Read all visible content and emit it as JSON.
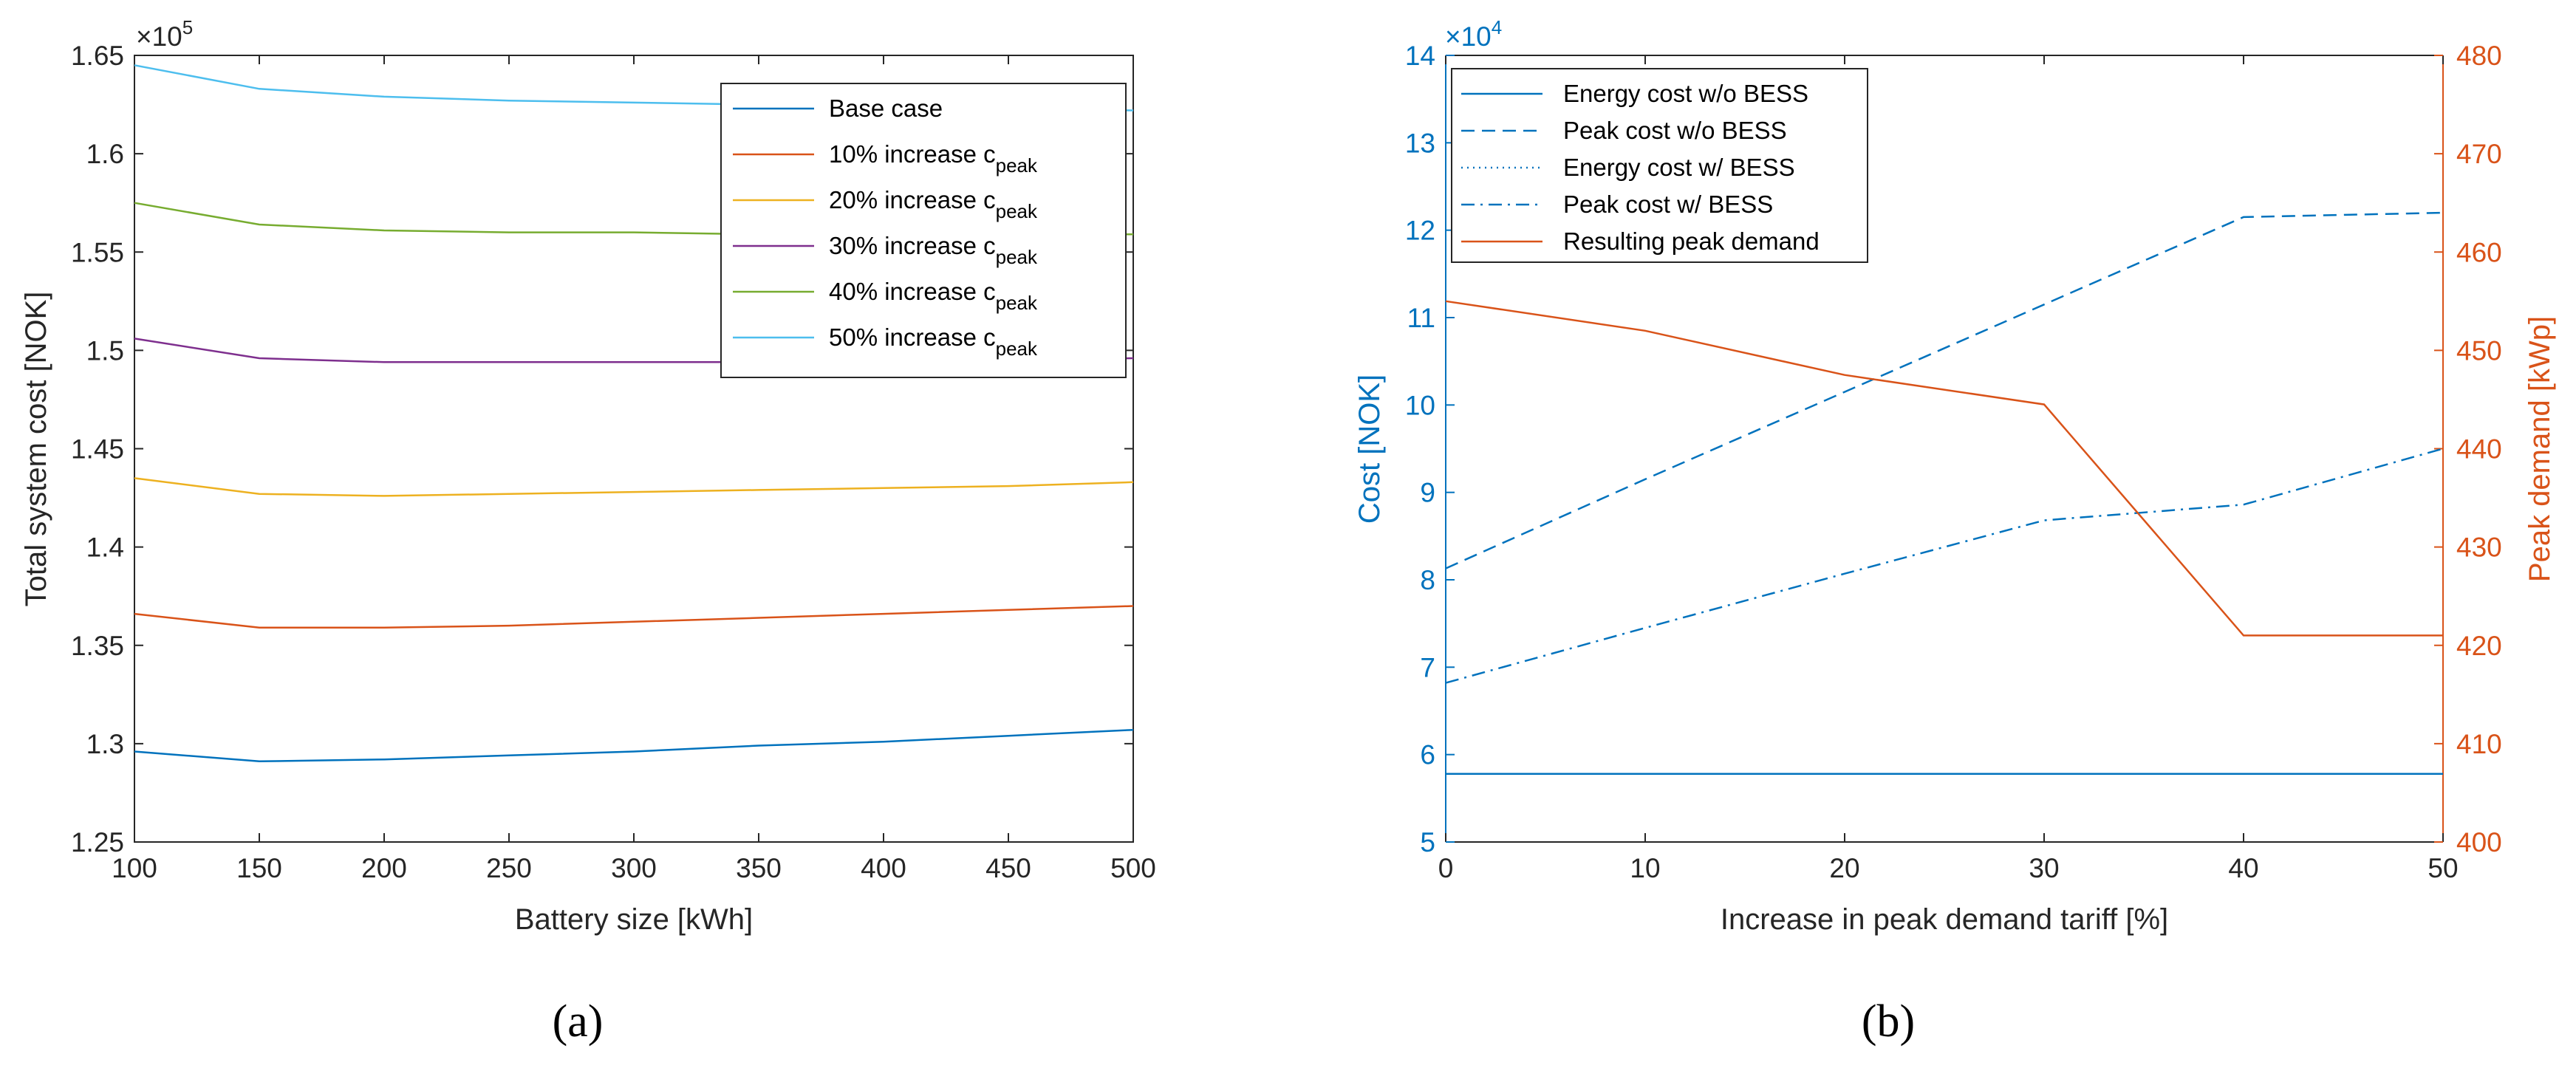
{
  "chart_data": [
    {
      "id": "a",
      "type": "line",
      "caption": "(a)",
      "xlabel": "Battery size [kWh]",
      "ylabel": "Total system cost [NOK]",
      "y_multiplier": "×10",
      "y_exponent": "5",
      "xlim": [
        100,
        500
      ],
      "ylim": [
        1.25,
        1.65
      ],
      "xticks": [
        100,
        150,
        200,
        250,
        300,
        350,
        400,
        450,
        500
      ],
      "xtick_labels": [
        "100",
        "150",
        "200",
        "250",
        "300",
        "350",
        "400",
        "450",
        "500"
      ],
      "yticks": [
        1.25,
        1.3,
        1.35,
        1.4,
        1.45,
        1.5,
        1.55,
        1.6,
        1.65
      ],
      "ytick_labels": [
        "1.25",
        "1.3",
        "1.35",
        "1.4",
        "1.45",
        "1.5",
        "1.55",
        "1.6",
        "1.65"
      ],
      "grid": false,
      "legend_position": "top-right",
      "x": [
        100,
        150,
        200,
        250,
        300,
        350,
        400,
        450,
        500
      ],
      "series": [
        {
          "name": "Base case",
          "label": "Base case",
          "sub": "",
          "color": "#0072BD",
          "values": [
            1.296,
            1.291,
            1.292,
            1.294,
            1.296,
            1.299,
            1.301,
            1.304,
            1.307
          ]
        },
        {
          "name": "10% increase c_peak",
          "label": "10% increase c",
          "sub": "peak",
          "color": "#D95319",
          "values": [
            1.366,
            1.359,
            1.359,
            1.36,
            1.362,
            1.364,
            1.366,
            1.368,
            1.37
          ]
        },
        {
          "name": "20% increase c_peak",
          "label": "20% increase c",
          "sub": "peak",
          "color": "#EDB120",
          "values": [
            1.435,
            1.427,
            1.426,
            1.427,
            1.428,
            1.429,
            1.43,
            1.431,
            1.433
          ]
        },
        {
          "name": "30% increase c_peak",
          "label": "30% increase c",
          "sub": "peak",
          "color": "#7E2F8E",
          "values": [
            1.506,
            1.496,
            1.494,
            1.494,
            1.494,
            1.494,
            1.495,
            1.495,
            1.496
          ]
        },
        {
          "name": "40% increase c_peak",
          "label": "40% increase c",
          "sub": "peak",
          "color": "#77AC30",
          "values": [
            1.575,
            1.564,
            1.561,
            1.56,
            1.56,
            1.559,
            1.559,
            1.559,
            1.559
          ]
        },
        {
          "name": "50% increase c_peak",
          "label": "50% increase c",
          "sub": "peak",
          "color": "#4DBEEE",
          "values": [
            1.645,
            1.633,
            1.629,
            1.627,
            1.626,
            1.625,
            1.624,
            1.623,
            1.622
          ]
        }
      ]
    },
    {
      "id": "b",
      "type": "line",
      "caption": "(b)",
      "xlabel": "Increase in peak demand tariff [%]",
      "ylabel": "Cost [NOK]",
      "y2label": "Peak demand [kWp]",
      "y_multiplier": "×10",
      "y_exponent": "4",
      "xlim": [
        0,
        50
      ],
      "ylim": [
        5,
        14
      ],
      "y2lim": [
        400,
        480
      ],
      "xticks": [
        0,
        10,
        20,
        30,
        40,
        50
      ],
      "xtick_labels": [
        "0",
        "10",
        "20",
        "30",
        "40",
        "50"
      ],
      "yticks": [
        5,
        6,
        7,
        8,
        9,
        10,
        11,
        12,
        13,
        14
      ],
      "ytick_labels": [
        "5",
        "6",
        "7",
        "8",
        "9",
        "10",
        "11",
        "12",
        "13",
        "14"
      ],
      "y2ticks": [
        400,
        410,
        420,
        430,
        440,
        450,
        460,
        470,
        480
      ],
      "y2tick_labels": [
        "400",
        "410",
        "420",
        "430",
        "440",
        "450",
        "460",
        "470",
        "480"
      ],
      "left_axis_color": "#0072BD",
      "right_axis_color": "#D95319",
      "grid": false,
      "legend_position": "top-left",
      "x": [
        0,
        10,
        20,
        30,
        40,
        50
      ],
      "series": [
        {
          "name": "Energy cost w/o BESS",
          "label": "Energy cost w/o BESS",
          "axis": "left",
          "dash": "solid",
          "color": "#0072BD",
          "values": [
            5.78,
            5.78,
            5.78,
            5.78,
            5.78,
            5.78
          ]
        },
        {
          "name": "Peak cost w/o BESS",
          "label": "Peak cost w/o BESS",
          "axis": "left",
          "dash": "dashed",
          "color": "#0072BD",
          "values": [
            8.13,
            9.15,
            10.15,
            11.15,
            12.15,
            12.2
          ]
        },
        {
          "name": "Energy cost w/ BESS",
          "label": "Energy cost w/ BESS",
          "axis": "left",
          "dash": "dotted",
          "color": "#0072BD",
          "values": [
            5.78,
            5.78,
            5.78,
            5.78,
            5.78,
            5.78
          ]
        },
        {
          "name": "Peak cost w/ BESS",
          "label": "Peak cost w/ BESS",
          "axis": "left",
          "dash": "dashdot",
          "color": "#0072BD",
          "values": [
            6.82,
            7.45,
            8.07,
            8.68,
            8.86,
            9.5
          ]
        },
        {
          "name": "Resulting peak demand",
          "label": "Resulting peak demand",
          "axis": "right",
          "dash": "solid",
          "color": "#D95319",
          "values": [
            455.0,
            452.0,
            447.5,
            444.5,
            421.0,
            421.0
          ]
        }
      ]
    }
  ]
}
